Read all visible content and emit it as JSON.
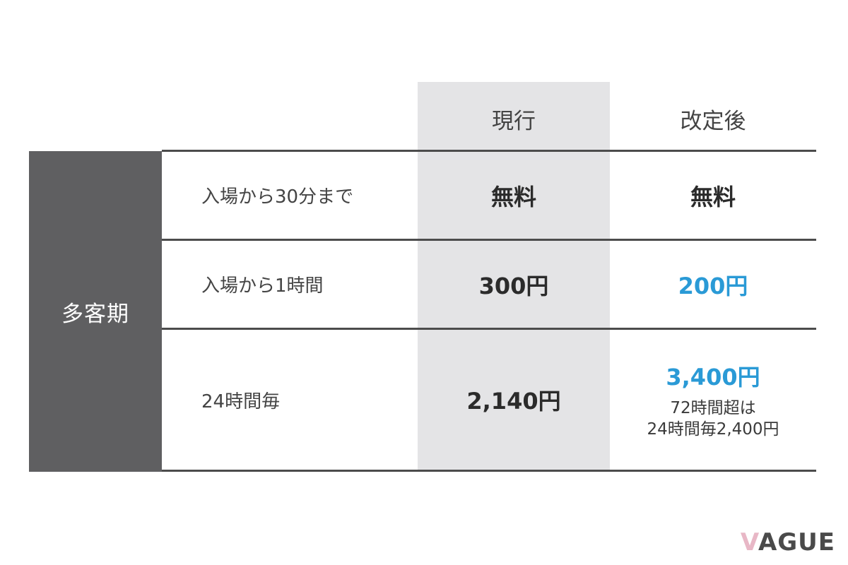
{
  "headers": {
    "current": "現行",
    "after": "改定後"
  },
  "season": "多客期",
  "rows": [
    {
      "label": "入場から30分まで",
      "current": "無料",
      "after": "無料"
    },
    {
      "label": "入場から1時間",
      "current": "300円",
      "after": "200円"
    },
    {
      "label": "24時間毎",
      "current": "2,140円",
      "after": "3,400円",
      "after_note_1": "72時間超は",
      "after_note_2": "24時間毎2,400円"
    }
  ],
  "logo": {
    "v": "V",
    "rest": "AGUE"
  },
  "colors": {
    "accent_blue": "#2a9ad6",
    "season_bg": "#5f5f61",
    "current_col_bg": "#e4e4e6",
    "logo_accent": "#e8b7c6"
  }
}
